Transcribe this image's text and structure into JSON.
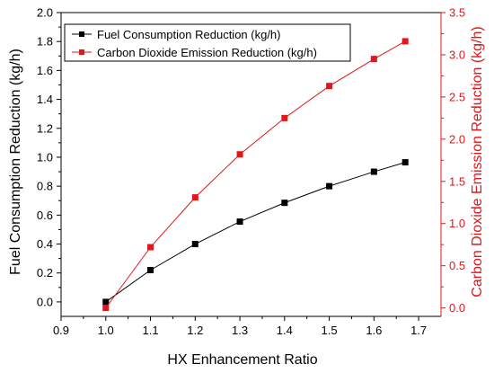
{
  "chart_data": {
    "type": "line",
    "x": [
      1.0,
      1.1,
      1.2,
      1.3,
      1.4,
      1.5,
      1.6,
      1.67
    ],
    "xlabel": "HX Enhancement Ratio",
    "xlim": [
      0.9,
      1.75
    ],
    "xticks": [
      0.9,
      1.0,
      1.1,
      1.2,
      1.3,
      1.4,
      1.5,
      1.6,
      1.7
    ],
    "xtick_labels": [
      "0.9",
      "1.0",
      "1.1",
      "1.2",
      "1.3",
      "1.4",
      "1.5",
      "1.6",
      "1.7"
    ],
    "ylabel_left": "Fuel Consumption Reduction (kg/h)",
    "ylim_left": [
      -0.1,
      2.0
    ],
    "yticks_left": [
      0.0,
      0.2,
      0.4,
      0.6,
      0.8,
      1.0,
      1.2,
      1.4,
      1.6,
      1.8,
      2.0
    ],
    "ytick_labels_left": [
      "0.0",
      "0.2",
      "0.4",
      "0.6",
      "0.8",
      "1.0",
      "1.2",
      "1.4",
      "1.6",
      "1.8",
      "2.0"
    ],
    "ylabel_right": "Carbon Dioxide Emission Reduction (kg/h)",
    "ylim_right": [
      -0.1,
      3.5
    ],
    "yticks_right": [
      0.0,
      0.5,
      1.0,
      1.5,
      2.0,
      2.5,
      3.0,
      3.5
    ],
    "ytick_labels_right": [
      "0.0",
      "0.5",
      "1.0",
      "1.5",
      "2.0",
      "2.5",
      "3.0",
      "3.5"
    ],
    "series": [
      {
        "name": "Fuel Consumption Reduction (kg/h)",
        "axis": "left",
        "marker": "square",
        "color": "#000000",
        "values": [
          0.0,
          0.22,
          0.4,
          0.555,
          0.685,
          0.8,
          0.9,
          0.965
        ]
      },
      {
        "name": "Carbon Dioxide Emission Reduction (kg/h)",
        "axis": "right",
        "marker": "square",
        "color": "#e0171b",
        "values": [
          0.0,
          0.72,
          1.31,
          1.82,
          2.25,
          2.63,
          2.95,
          3.16
        ]
      }
    ],
    "legend": "top-left",
    "grid": false
  }
}
